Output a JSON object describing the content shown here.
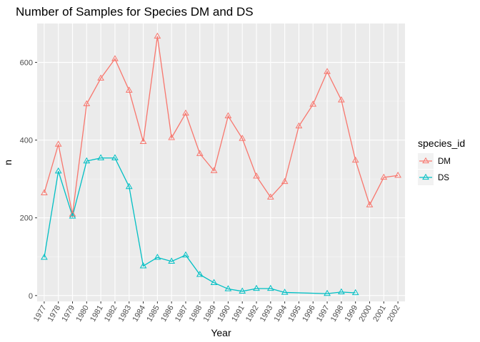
{
  "chart_data": {
    "type": "line",
    "title": "Number of Samples for Species DM and DS",
    "xlabel": "Year",
    "ylabel": "n",
    "ylim": [
      -15,
      700
    ],
    "y_ticks": [
      0,
      200,
      400,
      600
    ],
    "grid": true,
    "marker": "triangle-open",
    "x_tick_rotation": "vertical-ish (-60 degrees)",
    "legend": {
      "title": "species_id",
      "position": "right"
    },
    "categories": [
      "1977",
      "1978",
      "1979",
      "1980",
      "1981",
      "1982",
      "1983",
      "1984",
      "1985",
      "1986",
      "1987",
      "1988",
      "1989",
      "1990",
      "1991",
      "1992",
      "1993",
      "1994",
      "1995",
      "1996",
      "1997",
      "1998",
      "1999",
      "2000",
      "2001",
      "2002"
    ],
    "series": [
      {
        "name": "DM",
        "color": "#F8766D",
        "values": [
          264,
          389,
          209,
          493,
          559,
          609,
          528,
          396,
          667,
          406,
          469,
          365,
          321,
          462,
          404,
          307,
          253,
          293,
          436,
          492,
          576,
          503,
          348,
          233,
          304,
          309
        ]
      },
      {
        "name": "DS",
        "color": "#00BFC4",
        "values": [
          98,
          320,
          204,
          346,
          354,
          354,
          280,
          76,
          98,
          88,
          104,
          54,
          33,
          17,
          11,
          18,
          18,
          8,
          null,
          null,
          5,
          9,
          7,
          null,
          null,
          null
        ]
      }
    ]
  }
}
